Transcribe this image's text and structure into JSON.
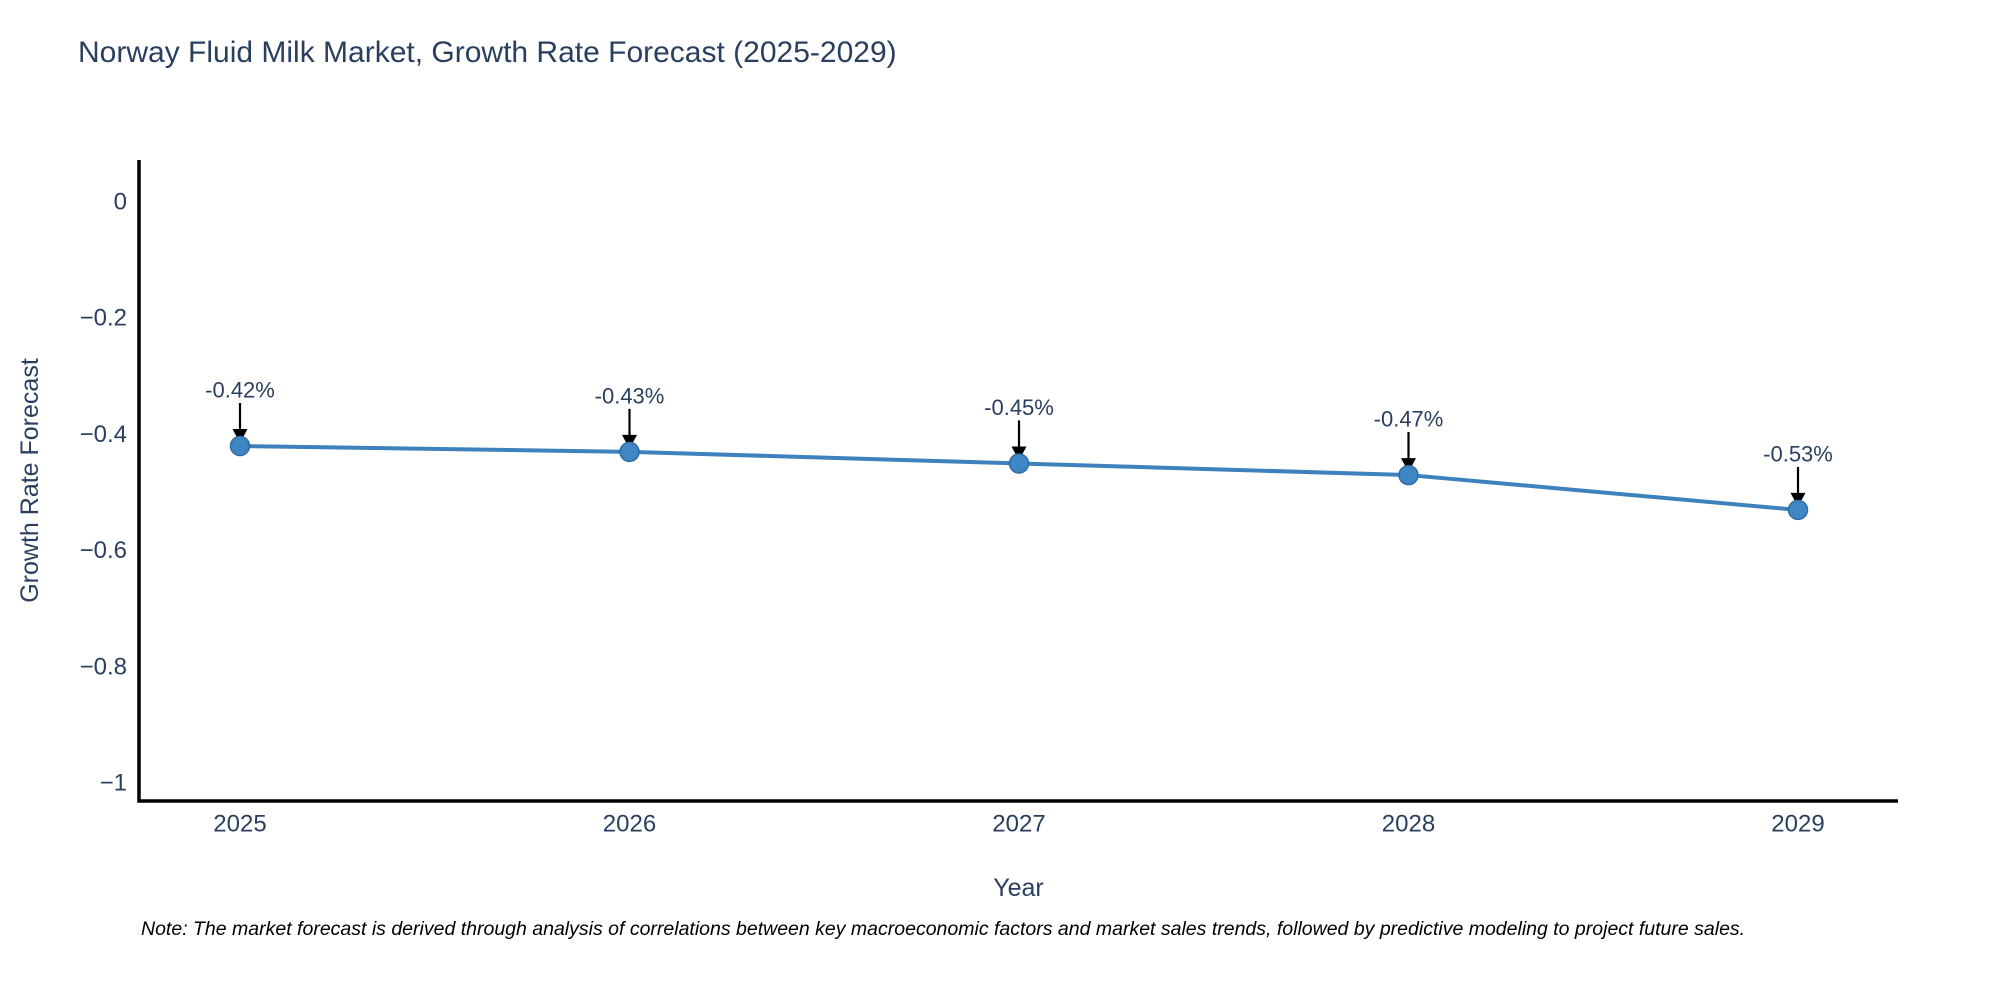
{
  "figure": {
    "title": "Norway Fluid Milk Market, Growth Rate Forecast (2025-2029)",
    "note": "Note: The market forecast is derived through analysis of correlations between key macroeconomic factors and market sales trends, followed by predictive modeling to project future sales."
  },
  "chart_data": {
    "type": "line",
    "title": "Norway Fluid Milk Market, Growth Rate Forecast (2025-2029)",
    "xlabel": "Year",
    "ylabel": "Growth Rate Forecast",
    "x": [
      2025,
      2026,
      2027,
      2028,
      2029
    ],
    "xtick_labels": [
      "2025",
      "2026",
      "2027",
      "2028",
      "2029"
    ],
    "series": [
      {
        "name": "Growth Rate Forecast",
        "values": [
          -0.42,
          -0.43,
          -0.45,
          -0.47,
          -0.53
        ]
      }
    ],
    "point_labels": [
      "-0.42%",
      "-0.43%",
      "-0.45%",
      "-0.47%",
      "-0.53%"
    ],
    "yticks": [
      0,
      -0.2,
      -0.4,
      -0.6,
      -0.8,
      -1
    ],
    "ytick_labels": [
      "0",
      "−0.2",
      "−0.4",
      "−0.6",
      "−0.8",
      "−1"
    ],
    "ylim": [
      -1.03,
      0.07
    ],
    "grid": false,
    "legend": "none",
    "annotation_note": "Note: The market forecast is derived through analysis of correlations between key macroeconomic factors and market sales trends, followed by predictive modeling to project future sales.",
    "colors": {
      "line": "#3d82bc",
      "marker": "#3f87c4",
      "marker_edge": "#2f6da6",
      "axis": "#000000",
      "text": "#2a3f5f",
      "annotation": "#2a3f5f",
      "arrow": "#000000",
      "note": "#000000",
      "background": "#ffffff"
    }
  }
}
